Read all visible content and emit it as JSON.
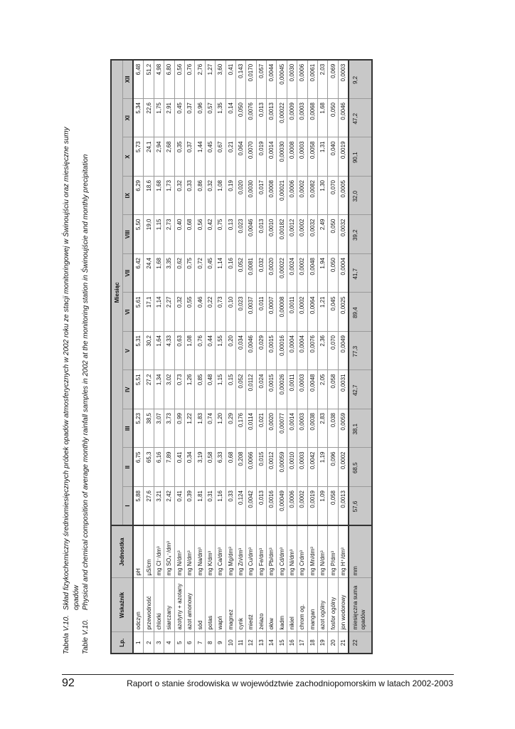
{
  "caption": {
    "pl_label": "Tabela V.10.",
    "pl_text": "Skład fizykochemiczny średniomiesięcznych próbek opadów atmosferycznych w 2002 roku ze stacji monitoringowej w Świnoujściu oraz miesięczne sumy",
    "pl_text_cont": "opadów",
    "en_label": "Table V.10.",
    "en_text": "Physical and chemical composition of average monthly rainfall samples in 2002 at the monitoring station in Świnoujście and monthly precipitation"
  },
  "table": {
    "headers": {
      "lp": "Lp.",
      "name": "Wskaźnik",
      "unit": "Jednostka",
      "month_group": "Miesiąc"
    },
    "months": [
      "I",
      "II",
      "III",
      "IV",
      "V",
      "VI",
      "VII",
      "VIII",
      "IX",
      "X",
      "XI",
      "XII"
    ],
    "rows": [
      {
        "lp": "1",
        "name": "odczyn",
        "unit": "pH",
        "values": [
          "5,88",
          "6,75",
          "5,23",
          "5,51",
          "5,31",
          "5,61",
          "6,42",
          "5,50",
          "6,29",
          "5,73",
          "5,34",
          "6,48"
        ]
      },
      {
        "lp": "2",
        "name": "przewodność",
        "unit": "µS/cm",
        "values": [
          "27,6",
          "65,3",
          "38,5",
          "27,2",
          "30,2",
          "17,1",
          "24,4",
          "19,0",
          "18,6",
          "24,1",
          "22,6",
          "51,2"
        ]
      },
      {
        "lp": "3",
        "name": "chlorki",
        "unit": "mg Cl⁻/dm³",
        "values": [
          "3,21",
          "6,16",
          "3,07",
          "1,34",
          "1,64",
          "1,14",
          "1,68",
          "1,15",
          "1,68",
          "2,94",
          "1,75",
          "4,98"
        ]
      },
      {
        "lp": "4",
        "name": "siarczany",
        "unit": "mg SO₄⁻/dm³",
        "values": [
          "2,42",
          "7,89",
          "3,73",
          "3,02",
          "4,33",
          "2,27",
          "3,35",
          "2,73",
          "1,73",
          "2,68",
          "2,91",
          "6,80"
        ]
      },
      {
        "lp": "5",
        "name": "azotyny + azotany",
        "unit": "mg N/dm³",
        "values": [
          "0,41",
          "0,41",
          "0,99",
          "0,73",
          "0,63",
          "0,32",
          "0,62",
          "0,40",
          "0,32",
          "0,35",
          "0,45",
          "0,56"
        ]
      },
      {
        "lp": "6",
        "name": "azot amonowy",
        "unit": "mg N/dm³",
        "values": [
          "0,39",
          "0,34",
          "1,22",
          "1,26",
          "1,08",
          "0,55",
          "0,75",
          "0,68",
          "0,33",
          "0,37",
          "0,37",
          "0,76"
        ]
      },
      {
        "lp": "7",
        "name": "sód",
        "unit": "mg Na/dm³",
        "values": [
          "1,81",
          "3,19",
          "1,83",
          "0,85",
          "0,76",
          "0,46",
          "0,72",
          "0,56",
          "0,86",
          "1,44",
          "0,96",
          "2,76"
        ]
      },
      {
        "lp": "8",
        "name": "potas",
        "unit": "mg K/dm³",
        "values": [
          "0,31",
          "0,58",
          "0,74",
          "0,48",
          "0,44",
          "0,22",
          "0,45",
          "0,42",
          "0,32",
          "0,45",
          "0,57",
          "1,27"
        ]
      },
      {
        "lp": "9",
        "name": "wapń",
        "unit": "mg Ca/dm³",
        "values": [
          "1,16",
          "6,33",
          "1,20",
          "1,15",
          "1,55",
          "0,73",
          "1,14",
          "0,75",
          "1,08",
          "0,67",
          "1,35",
          "3,60"
        ]
      },
      {
        "lp": "10",
        "name": "magnez",
        "unit": "mg Mg/dm³",
        "values": [
          "0,33",
          "0,68",
          "0,29",
          "0,15",
          "0,20",
          "0,10",
          "0,16",
          "0,13",
          "0,19",
          "0,21",
          "0,14",
          "0,41"
        ]
      },
      {
        "lp": "11",
        "name": "cynk",
        "unit": "mg Zn/dm³",
        "values": [
          "0,124",
          "0,208",
          "0,176",
          "0,052",
          "0,034",
          "0,023",
          "0,052",
          "0,023",
          "0,020",
          "0,064",
          "0,050",
          "0,143"
        ]
      },
      {
        "lp": "12",
        "name": "miedź",
        "unit": "mg Cu/dm³",
        "values": [
          "0,0042",
          "0,0066",
          "0,0114",
          "0,0112",
          "0,0046",
          "0,0037",
          "0,0081",
          "0,0046",
          "0,0030",
          "0,0070",
          "0,0076",
          "0,0170"
        ]
      },
      {
        "lp": "13",
        "name": "żelazo",
        "unit": "mg Fe/dm³",
        "values": [
          "0,013",
          "0,015",
          "0,021",
          "0,024",
          "0,029",
          "0,011",
          "0,032",
          "0,013",
          "0,017",
          "0,019",
          "0,013",
          "0,057"
        ]
      },
      {
        "lp": "14",
        "name": "ołów",
        "unit": "mg Pb/dm³",
        "values": [
          "0,0016",
          "0,0012",
          "0,0020",
          "0,0015",
          "0,0015",
          "0,0007",
          "0,0020",
          "0,0010",
          "0,0008",
          "0,0014",
          "0,0013",
          "0,0044"
        ]
      },
      {
        "lp": "15",
        "name": "kadm",
        "unit": "mg Cd/dm³",
        "values": [
          "0,00049",
          "0,00059",
          "0,00077",
          "0,00026",
          "0,00016",
          "0,00008",
          "0,00022",
          "0,00182",
          "0,00021",
          "0,00030",
          "0,00022",
          "0,00045"
        ]
      },
      {
        "lp": "16",
        "name": "nikiel",
        "unit": "mg Ni/dm³",
        "values": [
          "0,0006",
          "0,0010",
          "0,0014",
          "0,0011",
          "0,0004",
          "0,0011",
          "0,0024",
          "0,0012",
          "0,0006",
          "0,0008",
          "0,0009",
          "0,0030"
        ]
      },
      {
        "lp": "17",
        "name": "chrom og.",
        "unit": "mg Crdm³",
        "values": [
          "0,0002",
          "0,0003",
          "0,0003",
          "0,0003",
          "0,0004",
          "0,0002",
          "0,0002",
          "0,0002",
          "0,0002",
          "0,0003",
          "0,0003",
          "0,0006"
        ]
      },
      {
        "lp": "18",
        "name": "mangan",
        "unit": "mg Mn/dm³",
        "values": [
          "0,0019",
          "0,0042",
          "0,0038",
          "0,0048",
          "0,0076",
          "0,0064",
          "0,0048",
          "0,0032",
          "0,0082",
          "0,0058",
          "0,0068",
          "0,0061"
        ]
      },
      {
        "lp": "19",
        "name": "azot ogólny",
        "unit": "mg N/dm³",
        "values": [
          "1,09",
          "1,19",
          "2,83",
          "2,05",
          "2,36",
          "1,21",
          "1,94",
          "2,49",
          "1,30",
          "1,31",
          "1,68",
          "2,03"
        ]
      },
      {
        "lp": "20",
        "name": "fosfor ogólny",
        "unit": "mg P/dm³",
        "values": [
          "0,058",
          "0,096",
          "0,038",
          "0,058",
          "0,070",
          "0,045",
          "0,050",
          "0,050",
          "0,070",
          "0,040",
          "0,050",
          "0,069"
        ]
      },
      {
        "lp": "21",
        "name": "jon wodorowy",
        "unit": "mg H⁺/dm³",
        "values": [
          "0,0013",
          "0,0002",
          "0,0059",
          "0,0031",
          "0,0049",
          "0,0025",
          "0,0004",
          "0,0032",
          "0,0005",
          "0,0019",
          "0,0046",
          "0,0003"
        ]
      },
      {
        "lp": "22",
        "name": "miesięczna suma opadów",
        "unit": "mm",
        "values": [
          "57,6",
          "68,5",
          "38,1",
          "42,7",
          "77,3",
          "89,4",
          "41,7",
          "39,2",
          "32,0",
          "90,1",
          "47,2",
          "9,2"
        ]
      }
    ]
  },
  "footer": {
    "page_number": "92",
    "text": "Raport o stanie środowiska w województwie zachodniopomorskim w latach 2002-2003"
  },
  "colors": {
    "header_bg": "#c8c8c8",
    "border": "#333333"
  }
}
